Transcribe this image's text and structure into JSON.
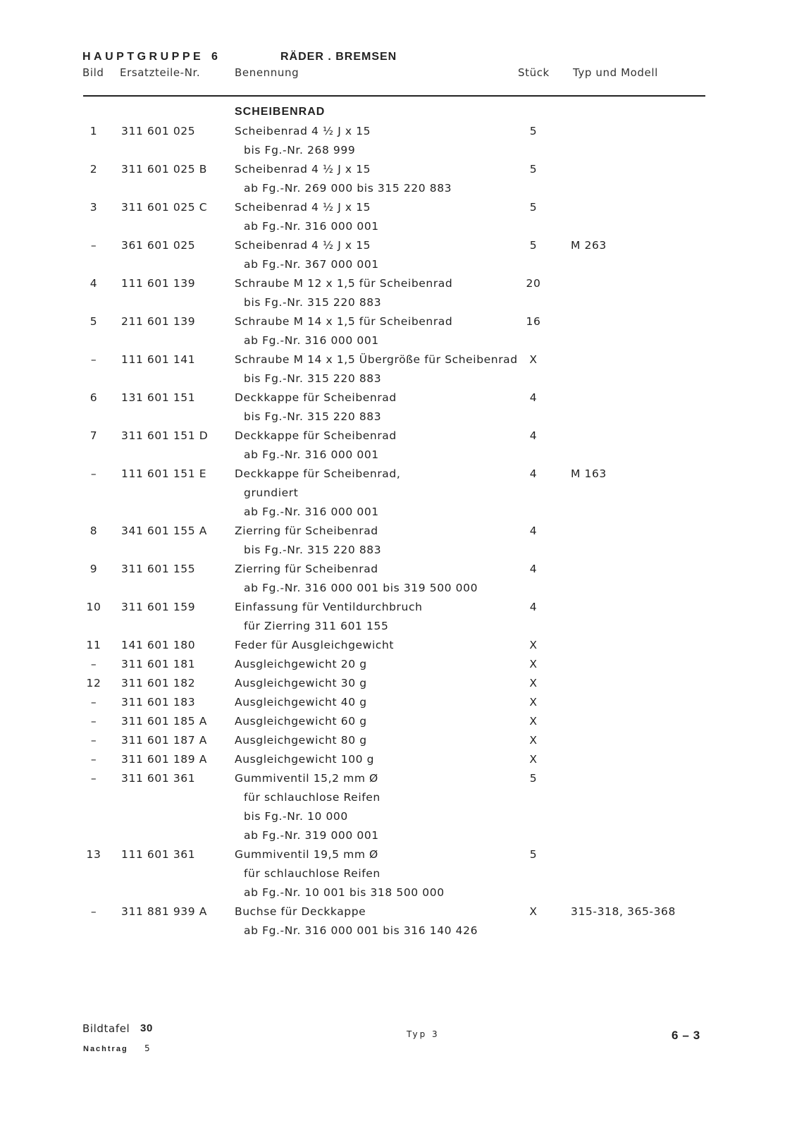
{
  "header": {
    "group_label": "HAUPTGRUPPE",
    "group_number": "6",
    "group_title": "RÄDER . BREMSEN",
    "columns": {
      "bild": "Bild",
      "nr": "Ersatzteile-Nr.",
      "benennung": "Benennung",
      "stueck": "Stück",
      "typ": "Typ und Modell"
    }
  },
  "section_title": "SCHEIBENRAD",
  "entries": [
    {
      "bild": "1",
      "nr": "311 601 025",
      "lines": [
        "Scheibenrad 4 ½ J x 15",
        "bis Fg.-Nr. 268 999"
      ],
      "qty": "5",
      "typ": ""
    },
    {
      "bild": "2",
      "nr": "311 601 025 B",
      "lines": [
        "Scheibenrad 4 ½ J x 15",
        "ab Fg.-Nr. 269 000 bis 315 220 883"
      ],
      "qty": "5",
      "typ": ""
    },
    {
      "bild": "3",
      "nr": "311 601 025 C",
      "lines": [
        "Scheibenrad 4 ½ J x 15",
        "ab Fg.-Nr. 316 000 001"
      ],
      "qty": "5",
      "typ": ""
    },
    {
      "bild": "–",
      "nr": "361 601 025",
      "lines": [
        "Scheibenrad 4 ½ J x 15",
        "ab Fg.-Nr. 367 000 001"
      ],
      "qty": "5",
      "typ": "M 263"
    },
    {
      "bild": "4",
      "nr": "111 601 139",
      "lines": [
        "Schraube M 12 x 1,5 für Scheibenrad",
        "bis Fg.-Nr. 315 220 883"
      ],
      "qty": "20",
      "typ": ""
    },
    {
      "bild": "5",
      "nr": "211 601 139",
      "lines": [
        "Schraube M 14 x 1,5 für Scheibenrad",
        "ab Fg.-Nr. 316 000 001"
      ],
      "qty": "16",
      "typ": ""
    },
    {
      "bild": "–",
      "nr": "111 601 141",
      "lines": [
        "Schraube M 14 x 1,5 Übergröße für Scheibenrad",
        "bis Fg.-Nr. 315 220 883"
      ],
      "qty": "X",
      "typ": ""
    },
    {
      "bild": "6",
      "nr": "131 601 151",
      "lines": [
        "Deckkappe für Scheibenrad",
        "bis Fg.-Nr. 315 220 883"
      ],
      "qty": "4",
      "typ": ""
    },
    {
      "bild": "7",
      "nr": "311 601 151 D",
      "lines": [
        "Deckkappe für Scheibenrad",
        "ab Fg.-Nr. 316 000 001"
      ],
      "qty": "4",
      "typ": ""
    },
    {
      "bild": "–",
      "nr": "111 601 151 E",
      "lines": [
        "Deckkappe für Scheibenrad,",
        "grundiert",
        "ab Fg.-Nr. 316 000 001"
      ],
      "qty": "4",
      "typ": "M 163"
    },
    {
      "bild": "8",
      "nr": "341 601 155 A",
      "lines": [
        "Zierring für Scheibenrad",
        "bis Fg.-Nr. 315 220 883"
      ],
      "qty": "4",
      "typ": ""
    },
    {
      "bild": "9",
      "nr": "311 601 155",
      "lines": [
        "Zierring für Scheibenrad",
        "ab Fg.-Nr. 316 000 001 bis 319 500 000"
      ],
      "qty": "4",
      "typ": ""
    },
    {
      "bild": "10",
      "nr": "311 601 159",
      "lines": [
        "Einfassung für Ventildurchbruch",
        "für Zierring 311 601 155"
      ],
      "qty": "4",
      "typ": ""
    },
    {
      "bild": "11",
      "nr": "141 601 180",
      "lines": [
        "Feder für Ausgleichgewicht"
      ],
      "qty": "X",
      "typ": ""
    },
    {
      "bild": "–",
      "nr": "311 601 181",
      "lines": [
        "Ausgleichgewicht 20 g"
      ],
      "qty": "X",
      "typ": ""
    },
    {
      "bild": "12",
      "nr": "311 601 182",
      "lines": [
        "Ausgleichgewicht 30 g"
      ],
      "qty": "X",
      "typ": ""
    },
    {
      "bild": "–",
      "nr": "311 601 183",
      "lines": [
        "Ausgleichgewicht 40 g"
      ],
      "qty": "X",
      "typ": ""
    },
    {
      "bild": "–",
      "nr": "311 601 185 A",
      "lines": [
        "Ausgleichgewicht 60 g"
      ],
      "qty": "X",
      "typ": ""
    },
    {
      "bild": "–",
      "nr": "311 601 187 A",
      "lines": [
        "Ausgleichgewicht 80 g"
      ],
      "qty": "X",
      "typ": ""
    },
    {
      "bild": "–",
      "nr": "311 601 189 A",
      "lines": [
        "Ausgleichgewicht 100 g"
      ],
      "qty": "X",
      "typ": ""
    },
    {
      "bild": "–",
      "nr": "311 601 361",
      "lines": [
        "Gummiventil 15,2 mm Ø",
        "für schlauchlose Reifen",
        "bis Fg.-Nr. 10 000",
        "ab Fg.-Nr. 319 000 001"
      ],
      "qty": "5",
      "typ": ""
    },
    {
      "bild": "13",
      "nr": "111 601 361",
      "lines": [
        "Gummiventil 19,5 mm Ø",
        "für schlauchlose Reifen",
        "ab Fg.-Nr. 10 001 bis 318 500 000"
      ],
      "qty": "5",
      "typ": ""
    },
    {
      "bild": "–",
      "nr": "311 881 939 A",
      "lines": [
        "Buchse für Deckkappe",
        "ab Fg.-Nr. 316 000 001 bis 316 140 426"
      ],
      "qty": "X",
      "typ": "315-318, 365-368"
    }
  ],
  "footer": {
    "bildtafel_label": "Bildtafel",
    "bildtafel_number": "30",
    "nachtrag_label": "Nachtrag",
    "nachtrag_number": "5",
    "typ": "Typ 3",
    "page": "6 – 3"
  }
}
